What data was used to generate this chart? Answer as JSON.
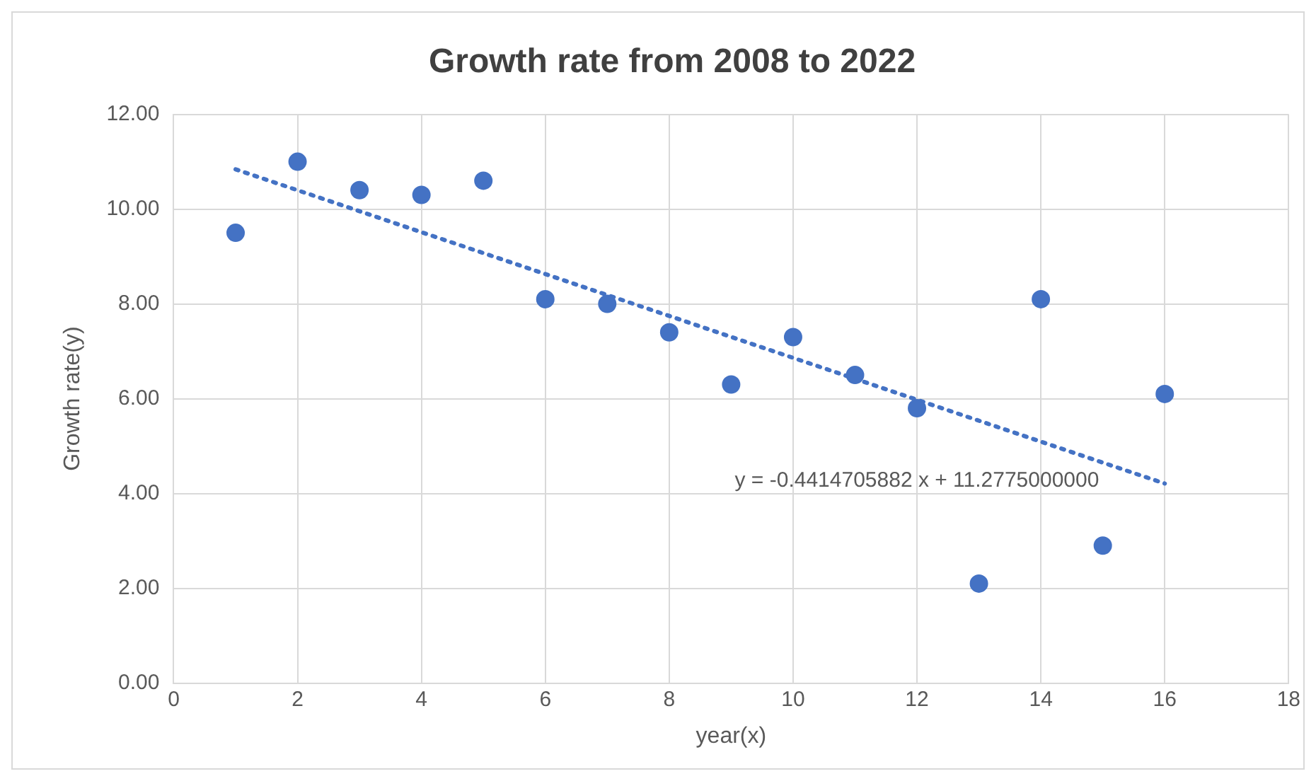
{
  "chart_data": {
    "type": "scatter",
    "title": "Growth rate from 2008 to 2022",
    "xlabel": "year(x)",
    "ylabel": "Growth rate(y)",
    "x": [
      1,
      2,
      3,
      4,
      5,
      6,
      7,
      8,
      9,
      10,
      11,
      12,
      13,
      14,
      15,
      16
    ],
    "series": [
      {
        "color": "#4472c4",
        "marker": "circle",
        "values": [
          9.5,
          11.0,
          10.4,
          10.3,
          10.6,
          8.1,
          8.0,
          7.4,
          6.3,
          7.3,
          6.5,
          5.8,
          2.1,
          8.1,
          2.9,
          6.1
        ]
      },
      {
        "type": "line",
        "color": "#4472c4",
        "line_style": "dotted",
        "marker": "none",
        "x": [
          1,
          16
        ],
        "values": [
          10.84,
          4.21
        ]
      }
    ],
    "annotations": [
      "y = -0.4414705882 x + 11.2775000000"
    ],
    "xlim": [
      0,
      18
    ],
    "xticks": [
      0,
      2,
      4,
      6,
      8,
      10,
      12,
      14,
      16,
      18
    ],
    "ylim": [
      0,
      12
    ],
    "yticks": [
      {
        "value": 0,
        "label": "0.00"
      },
      {
        "value": 2,
        "label": "2.00"
      },
      {
        "value": 4,
        "label": "4.00"
      },
      {
        "value": 6,
        "label": "6.00"
      },
      {
        "value": 8,
        "label": "8.00"
      },
      {
        "value": 10,
        "label": "10.00"
      },
      {
        "value": 12,
        "label": "12.00"
      }
    ],
    "grid": true,
    "legend": false
  }
}
